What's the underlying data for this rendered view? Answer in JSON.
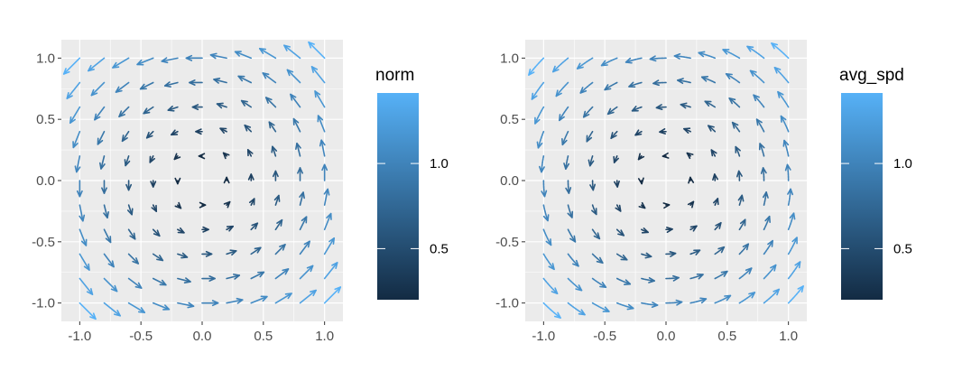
{
  "chart_data": [
    {
      "type": "quiver",
      "field": "rotational vector field, vector (u, v) = (-y, x) at each grid point",
      "grid": {
        "x_start": -1.0,
        "x_end": 1.0,
        "x_step": 0.2,
        "y_start": -1.0,
        "y_end": 1.0,
        "y_step": 0.2,
        "skip_points": [
          [
            0,
            0
          ]
        ]
      },
      "color_variable": "norm",
      "xlim": [
        -1.15,
        1.15
      ],
      "ylim": [
        -1.15,
        1.15
      ],
      "xticks": [
        -1.0,
        -0.5,
        0.0,
        0.5,
        1.0
      ],
      "xtick_labels": [
        "-1.0",
        "-0.5",
        "0.0",
        "0.5",
        "1.0"
      ],
      "yticks": [
        -1.0,
        -0.5,
        0.0,
        0.5,
        1.0
      ],
      "ytick_labels": [
        "-1.0",
        "-0.5",
        "0.0",
        "0.5",
        "1.0"
      ],
      "grid_lines": true,
      "legend": {
        "title": "norm",
        "type": "colorbar",
        "placement": "right",
        "range": [
          0.2,
          1.414
        ],
        "breaks": [
          0.5,
          1.0
        ],
        "break_labels": [
          "0.5",
          "1.0"
        ],
        "low_color": "#132B43",
        "high_color": "#56B1F7"
      }
    },
    {
      "type": "quiver",
      "field": "rotational vector field, curved arrows following (-y, x)",
      "grid": {
        "x_start": -1.0,
        "x_end": 1.0,
        "x_step": 0.2,
        "y_start": -1.0,
        "y_end": 1.0,
        "y_step": 0.2,
        "skip_points": [
          [
            0,
            0
          ]
        ]
      },
      "color_variable": "avg_spd",
      "xlim": [
        -1.15,
        1.15
      ],
      "ylim": [
        -1.15,
        1.15
      ],
      "xticks": [
        -1.0,
        -0.5,
        0.0,
        0.5,
        1.0
      ],
      "xtick_labels": [
        "-1.0",
        "-0.5",
        "0.0",
        "0.5",
        "1.0"
      ],
      "yticks": [
        -1.0,
        -0.5,
        0.0,
        0.5,
        1.0
      ],
      "ytick_labels": [
        "-1.0",
        "-0.5",
        "0.0",
        "0.5",
        "1.0"
      ],
      "grid_lines": true,
      "legend": {
        "title": "avg_spd",
        "type": "colorbar",
        "placement": "right",
        "range": [
          0.2,
          1.414
        ],
        "breaks": [
          0.5,
          1.0
        ],
        "break_labels": [
          "0.5",
          "1.0"
        ],
        "low_color": "#132B43",
        "high_color": "#56B1F7"
      }
    }
  ],
  "colors": {
    "panel_background": "#EBEBEB",
    "grid_major": "#FFFFFF",
    "axis_text": "#4D4D4D",
    "tick_mark": "#333333"
  }
}
